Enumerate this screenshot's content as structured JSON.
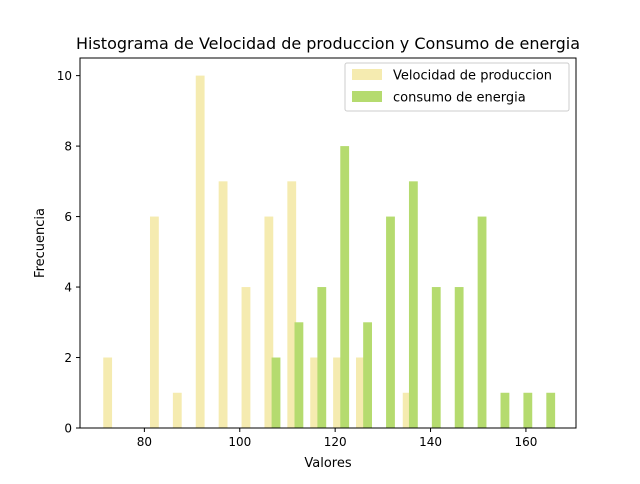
{
  "chart_data": {
    "type": "bar",
    "title": "Histograma de Velocidad de produccion y Consumo de energia",
    "xlabel": "Valores",
    "ylabel": "Frecuencia",
    "xlim": [
      66.5,
      170.5
    ],
    "ylim": [
      0,
      10.5
    ],
    "xticks": [
      80,
      100,
      120,
      140,
      160
    ],
    "yticks": [
      0,
      2,
      4,
      6,
      8,
      10
    ],
    "legend_position": "top-right",
    "series": [
      {
        "name": "Velocidad de produccion",
        "color": "#F5EBB0",
        "bins": [
          {
            "x": 72.3,
            "count": 2
          },
          {
            "x": 82.1,
            "count": 6
          },
          {
            "x": 86.9,
            "count": 1
          },
          {
            "x": 91.7,
            "count": 10
          },
          {
            "x": 96.5,
            "count": 7
          },
          {
            "x": 101.3,
            "count": 4
          },
          {
            "x": 106.1,
            "count": 6
          },
          {
            "x": 110.9,
            "count": 7
          },
          {
            "x": 115.7,
            "count": 2
          },
          {
            "x": 120.5,
            "count": 2
          },
          {
            "x": 125.3,
            "count": 2
          },
          {
            "x": 135.1,
            "count": 1
          }
        ]
      },
      {
        "name": "consumo de energia",
        "color": "#B5DB6F",
        "bins": [
          {
            "x": 107.6,
            "count": 2
          },
          {
            "x": 112.4,
            "count": 3
          },
          {
            "x": 117.2,
            "count": 4
          },
          {
            "x": 122.0,
            "count": 8
          },
          {
            "x": 126.8,
            "count": 3
          },
          {
            "x": 131.6,
            "count": 6
          },
          {
            "x": 136.4,
            "count": 7
          },
          {
            "x": 141.2,
            "count": 4
          },
          {
            "x": 146.0,
            "count": 4
          },
          {
            "x": 150.8,
            "count": 6
          },
          {
            "x": 155.6,
            "count": 1
          },
          {
            "x": 160.4,
            "count": 1
          },
          {
            "x": 165.2,
            "count": 1
          }
        ]
      }
    ]
  }
}
